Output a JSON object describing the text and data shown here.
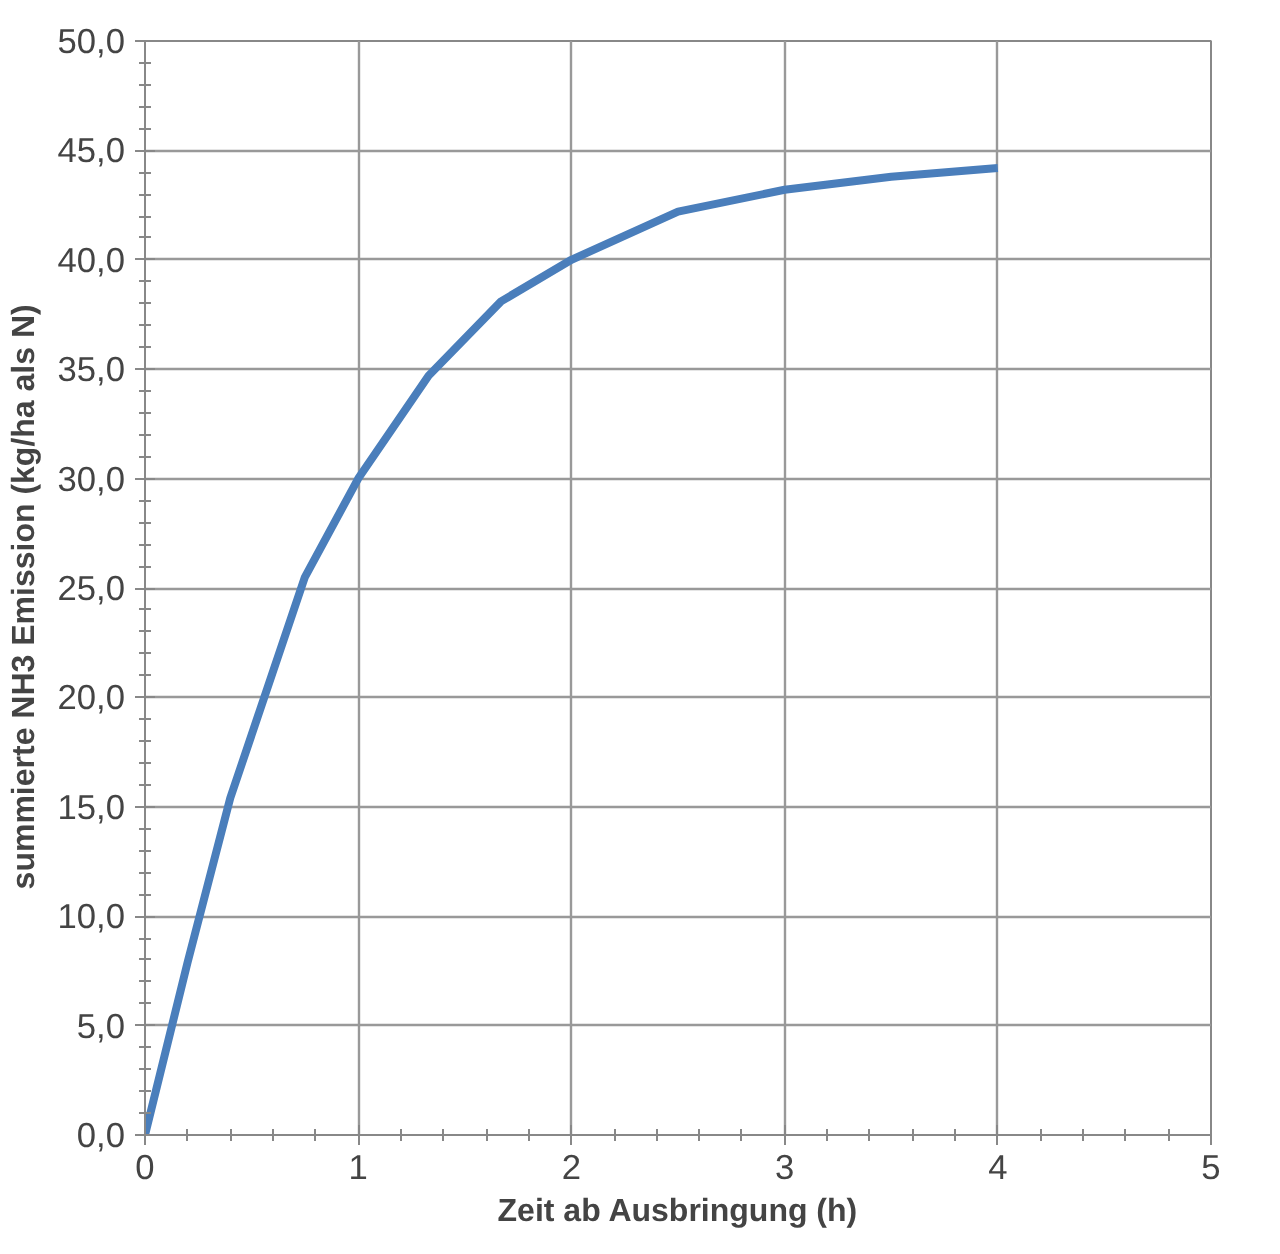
{
  "chart_data": {
    "type": "line",
    "xlabel": "Zeit ab Ausbringung (h)",
    "ylabel": "summierte  NH3 Emission (kg/ha  als N)",
    "x": [
      0,
      0.2,
      0.4,
      0.75,
      1.0,
      1.33,
      1.67,
      2.0,
      2.5,
      3.0,
      3.5,
      4.0
    ],
    "series": [
      {
        "color": "#4a7ebb",
        "values": [
          0,
          7.9,
          15.4,
          25.5,
          30.0,
          34.7,
          38.1,
          40.0,
          42.2,
          43.2,
          43.8,
          44.2
        ]
      }
    ],
    "xlim": [
      0,
      5
    ],
    "xticks": [
      0,
      1,
      2,
      3,
      4,
      5
    ],
    "ylim": [
      0,
      50
    ],
    "yticks": [
      {
        "value": 0,
        "label": "0,0"
      },
      {
        "value": 5,
        "label": "5,0"
      },
      {
        "value": 10,
        "label": "10,0"
      },
      {
        "value": 15,
        "label": "15,0"
      },
      {
        "value": 20,
        "label": "20,0"
      },
      {
        "value": 25,
        "label": "25,0"
      },
      {
        "value": 30,
        "label": "30,0"
      },
      {
        "value": 35,
        "label": "35,0"
      },
      {
        "value": 40,
        "label": "40,0"
      },
      {
        "value": 45,
        "label": "45,0"
      },
      {
        "value": 50,
        "label": "50,0"
      }
    ],
    "grid": true,
    "marker": "none",
    "line_style": "solid"
  }
}
